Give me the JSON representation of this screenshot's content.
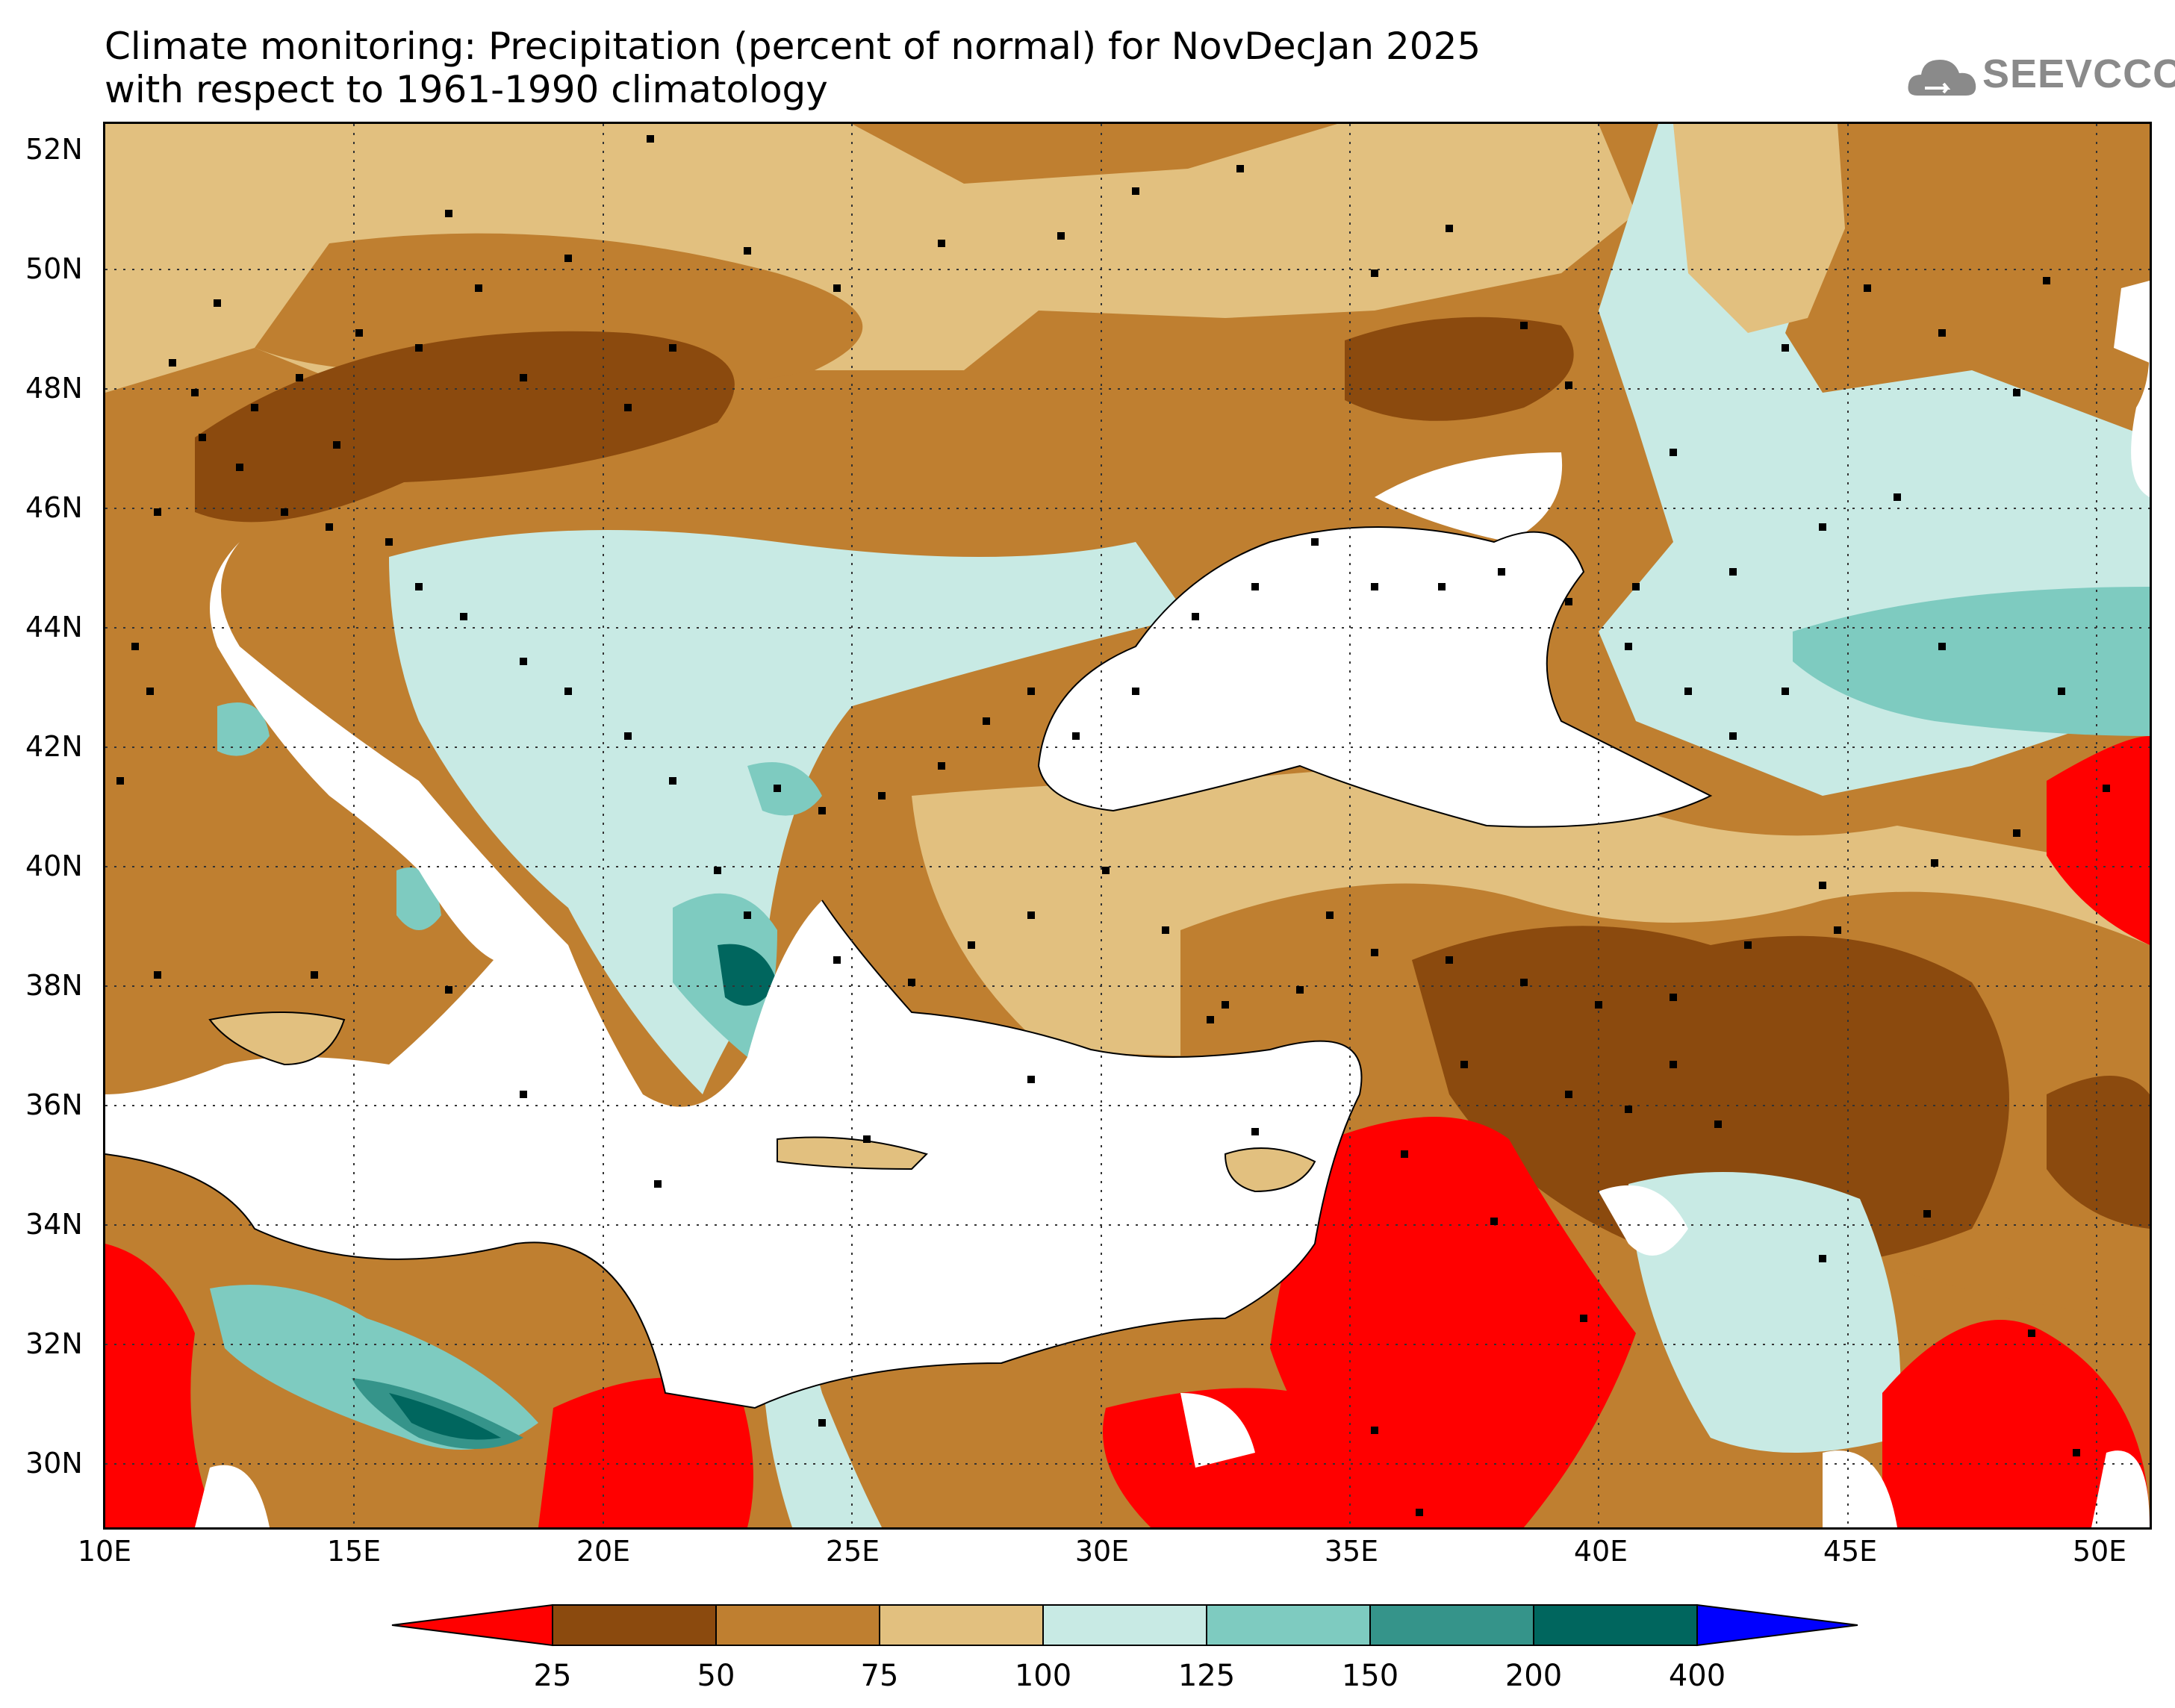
{
  "title": {
    "line1": "Climate monitoring: Precipitation (percent of normal) for NovDecJan 2025",
    "line2": "with respect to 1961-1990 climatology"
  },
  "logo": {
    "text": "SEEVCCC",
    "icon": "cloud-icon"
  },
  "map": {
    "lon_range": [
      10,
      51
    ],
    "lat_range": [
      29,
      52.5
    ],
    "lat_labels": [
      "52N",
      "50N",
      "48N",
      "46N",
      "44N",
      "42N",
      "40N",
      "38N",
      "36N",
      "34N",
      "32N",
      "30N"
    ],
    "lon_labels": [
      "10E",
      "15E",
      "20E",
      "25E",
      "30E",
      "35E",
      "40E",
      "45E",
      "50E"
    ],
    "grid": "dotted"
  },
  "legend": {
    "categories": [
      "<25",
      "25-50",
      "50-75",
      "75-100",
      "100-125",
      "125-150",
      "150-200",
      "200-400",
      ">400"
    ],
    "colors": [
      "#ff0000",
      "#8b4a0e",
      "#bf7f30",
      "#e2c07f",
      "#c8eae4",
      "#7ecbc0",
      "#35948a",
      "#00665e",
      "#0000ff"
    ],
    "tick_labels": [
      "25",
      "50",
      "75",
      "100",
      "125",
      "150",
      "200",
      "400"
    ]
  }
}
